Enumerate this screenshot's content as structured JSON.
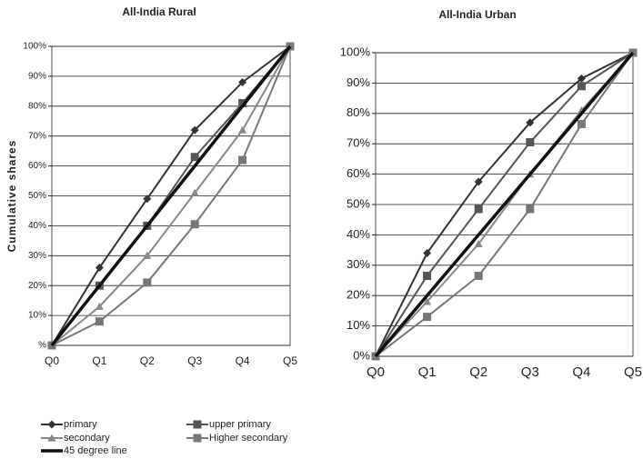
{
  "chart_data": [
    {
      "type": "line",
      "title": "All-India Rural",
      "y_label": "Cumulative shares",
      "categories": [
        "Q0",
        "Q1",
        "Q2",
        "Q3",
        "Q4",
        "Q5"
      ],
      "ylim": [
        0,
        100
      ],
      "yticks": [
        {
          "value": 0,
          "label": "%"
        },
        {
          "value": 10,
          "label": "10%"
        },
        {
          "value": 20,
          "label": "20%"
        },
        {
          "value": 30,
          "label": "30%"
        },
        {
          "value": 40,
          "label": "40%"
        },
        {
          "value": 50,
          "label": "50%"
        },
        {
          "value": 60,
          "label": "60%"
        },
        {
          "value": 70,
          "label": "70%"
        },
        {
          "value": 80,
          "label": "80%"
        },
        {
          "value": 90,
          "label": "90%"
        },
        {
          "value": 100,
          "label": "100%"
        }
      ],
      "grid": true,
      "series": [
        {
          "name": "primary",
          "color": "#333333",
          "marker": "diamond",
          "values": [
            0,
            26,
            49,
            72,
            88,
            100
          ]
        },
        {
          "name": "upper primary",
          "color": "#555555",
          "marker": "square",
          "values": [
            0,
            20,
            40,
            63,
            81,
            100
          ]
        },
        {
          "name": "secondary",
          "color": "#888888",
          "marker": "triangle",
          "values": [
            0,
            13,
            30,
            51,
            72,
            100
          ]
        },
        {
          "name": "Higher secondary",
          "color": "#777777",
          "marker": "square",
          "values": [
            0,
            8,
            21,
            40.5,
            62,
            100
          ]
        },
        {
          "name": "45 degree line",
          "color": "#111111",
          "marker": "none",
          "values": [
            0,
            20,
            40,
            60,
            80,
            100
          ]
        }
      ]
    },
    {
      "type": "line",
      "title": "All-India Urban",
      "categories": [
        "Q0",
        "Q1",
        "Q2",
        "Q3",
        "Q4",
        "Q5"
      ],
      "ylim": [
        0,
        100
      ],
      "yticks": [
        {
          "value": 0,
          "label": "0%"
        },
        {
          "value": 10,
          "label": "10%"
        },
        {
          "value": 20,
          "label": "20%"
        },
        {
          "value": 30,
          "label": "30%"
        },
        {
          "value": 40,
          "label": "40%"
        },
        {
          "value": 50,
          "label": "50%"
        },
        {
          "value": 60,
          "label": "60%"
        },
        {
          "value": 70,
          "label": "70%"
        },
        {
          "value": 80,
          "label": "80%"
        },
        {
          "value": 90,
          "label": "90%"
        },
        {
          "value": 100,
          "label": "100%"
        }
      ],
      "grid": true,
      "series": [
        {
          "color": "#333333",
          "marker": "diamond",
          "values": [
            0,
            34,
            57.5,
            77,
            91.5,
            100
          ]
        },
        {
          "color": "#555555",
          "marker": "square",
          "values": [
            0,
            26.5,
            48.5,
            70.5,
            89,
            100
          ]
        },
        {
          "color": "#888888",
          "marker": "triangle",
          "values": [
            0,
            18,
            37,
            60,
            81,
            100
          ]
        },
        {
          "color": "#777777",
          "marker": "square",
          "values": [
            0,
            13,
            26.5,
            48.5,
            76.5,
            100
          ]
        },
        {
          "color": "#111111",
          "marker": "none",
          "values": [
            0,
            20,
            40,
            60,
            80,
            100
          ]
        }
      ]
    }
  ]
}
